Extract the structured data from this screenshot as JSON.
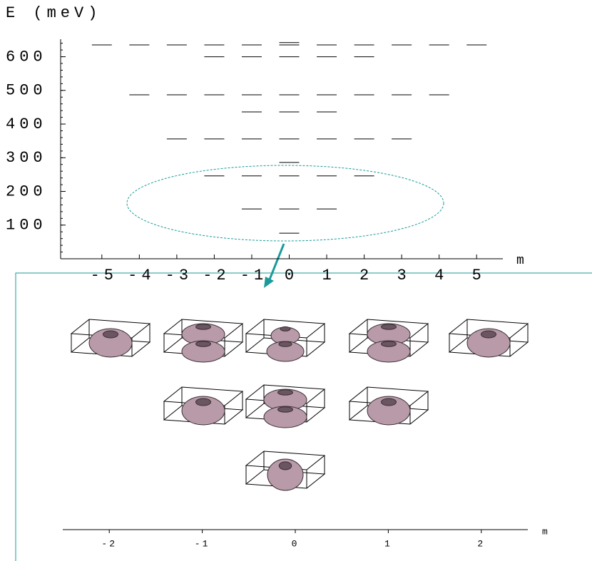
{
  "chart_data": [
    {
      "type": "levels",
      "ylabel": "E (meV)",
      "xlabel": "m",
      "x": [
        -5,
        -4,
        -3,
        -2,
        -1,
        0,
        1,
        2,
        3,
        4,
        5,
        0,
        -2,
        -1,
        0,
        1,
        2,
        -4,
        -3,
        -2,
        -1,
        0,
        1,
        2,
        3,
        4,
        -1,
        0,
        1,
        -3,
        -2,
        -1,
        0,
        1,
        2,
        3,
        0,
        -2,
        -1,
        0,
        1,
        2,
        -1,
        0,
        1,
        0
      ],
      "values": [
        635,
        635,
        635,
        635,
        635,
        635,
        635,
        635,
        635,
        635,
        635,
        642,
        600,
        600,
        600,
        600,
        600,
        487,
        487,
        487,
        487,
        487,
        487,
        487,
        487,
        487,
        436,
        436,
        436,
        356,
        356,
        356,
        356,
        356,
        356,
        356,
        286,
        246,
        246,
        246,
        246,
        246,
        148,
        148,
        148,
        76
      ],
      "xlim": [
        -6.1,
        5.7
      ],
      "ylim": [
        0,
        652
      ],
      "xticks": [
        -5,
        -4,
        -3,
        -2,
        -1,
        0,
        1,
        2,
        3,
        4,
        5
      ],
      "yticks": [
        100,
        200,
        300,
        400,
        500,
        600
      ]
    },
    {
      "type": "axis",
      "xlabel": "m",
      "xlim": [
        -2.5,
        2.5
      ],
      "xticks": [
        -2,
        -1,
        0,
        1,
        2
      ]
    }
  ]
}
